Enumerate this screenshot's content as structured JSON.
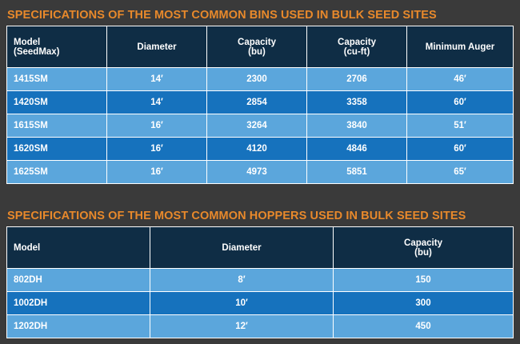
{
  "bins": {
    "title": "SPECIFICATIONS OF THE MOST COMMON BINS USED IN BULK SEED SITES",
    "headers": {
      "model_line1": "Model",
      "model_line2": "(SeedMax)",
      "diameter": "Diameter",
      "capacity_bu_line1": "Capacity",
      "capacity_bu_line2": "(bu)",
      "capacity_cuft_line1": "Capacity",
      "capacity_cuft_line2": "(cu-ft)",
      "min_auger": "Minimum Auger"
    },
    "rows": [
      {
        "model": "1415SM",
        "diameter": "14′",
        "capacity_bu": "2300",
        "capacity_cuft": "2706",
        "min_auger": "46′"
      },
      {
        "model": "1420SM",
        "diameter": "14′",
        "capacity_bu": "2854",
        "capacity_cuft": "3358",
        "min_auger": "60′"
      },
      {
        "model": "1615SM",
        "diameter": "16′",
        "capacity_bu": "3264",
        "capacity_cuft": "3840",
        "min_auger": "51′"
      },
      {
        "model": "1620SM",
        "diameter": "16′",
        "capacity_bu": "4120",
        "capacity_cuft": "4846",
        "min_auger": "60′"
      },
      {
        "model": "1625SM",
        "diameter": "16′",
        "capacity_bu": "4973",
        "capacity_cuft": "5851",
        "min_auger": "65′"
      }
    ]
  },
  "hoppers": {
    "title": "SPECIFICATIONS OF THE MOST COMMON HOPPERS USED IN BULK SEED SITES",
    "headers": {
      "model": "Model",
      "diameter": "Diameter",
      "capacity_line1": "Capacity",
      "capacity_line2": "(bu)"
    },
    "rows": [
      {
        "model": "802DH",
        "diameter": "8′",
        "capacity": "150"
      },
      {
        "model": "1002DH",
        "diameter": "10′",
        "capacity": "300"
      },
      {
        "model": "1202DH",
        "diameter": "12′",
        "capacity": "450"
      }
    ]
  },
  "colors": {
    "title": "#e8892b",
    "header_bg": "#0f2d45",
    "row_light": "#5ba6dc",
    "row_dark": "#1672bd",
    "background": "#3a3a3a"
  }
}
